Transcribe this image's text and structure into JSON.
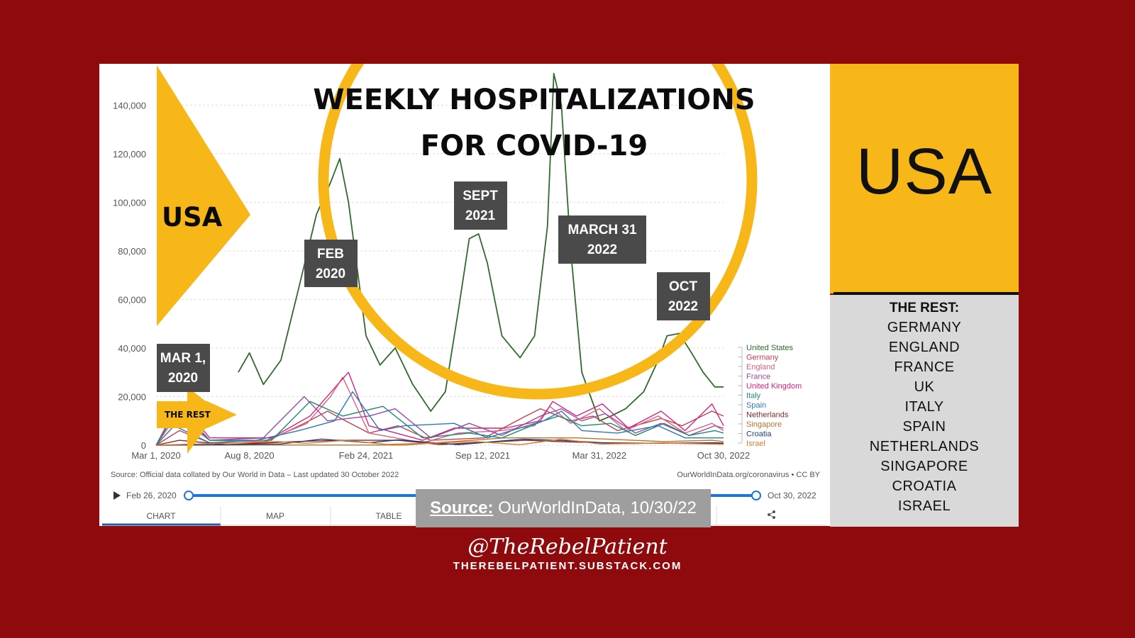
{
  "chart_data": {
    "type": "line",
    "title_line1": "WEEKLY HOSPITALIZATIONS",
    "title_line2": "FOR COVID-19",
    "x_ticks": [
      "Mar 1, 2020",
      "Aug 8, 2020",
      "Feb 24, 2021",
      "Sep 12, 2021",
      "Mar 31, 2022",
      "Oct 30, 2022"
    ],
    "y_ticks": [
      "0",
      "20,000",
      "40,000",
      "60,000",
      "80,000",
      "100,000",
      "120,000",
      "140,000"
    ],
    "ylim": [
      0,
      150000
    ],
    "xlim": [
      "2020-03-01",
      "2022-10-30"
    ],
    "grid": true,
    "legend_position": "right",
    "series": [
      {
        "name": "United States",
        "color": "#2f6b2a",
        "x": [
          "2020-07-20",
          "2020-08-08",
          "2020-09-01",
          "2020-10-01",
          "2020-11-01",
          "2020-12-01",
          "2020-12-25",
          "2021-01-10",
          "2021-01-25",
          "2021-02-24",
          "2021-03-20",
          "2021-04-15",
          "2021-05-15",
          "2021-06-15",
          "2021-07-10",
          "2021-08-01",
          "2021-08-20",
          "2021-09-05",
          "2021-09-20",
          "2021-10-15",
          "2021-11-15",
          "2021-12-10",
          "2022-01-01",
          "2022-01-12",
          "2022-01-25",
          "2022-02-10",
          "2022-03-01",
          "2022-03-31",
          "2022-04-20",
          "2022-05-15",
          "2022-06-15",
          "2022-07-10",
          "2022-07-25",
          "2022-08-15",
          "2022-09-05",
          "2022-09-25",
          "2022-10-15",
          "2022-10-30"
        ],
        "y": [
          30000,
          38000,
          25000,
          35000,
          65000,
          95000,
          108000,
          118000,
          100000,
          45000,
          33000,
          40000,
          25000,
          14000,
          22000,
          55000,
          85000,
          87000,
          75000,
          45000,
          36000,
          45000,
          90000,
          153000,
          140000,
          80000,
          30000,
          10000,
          12000,
          15000,
          22000,
          35000,
          45000,
          46000,
          38000,
          30000,
          24000,
          24000
        ]
      },
      {
        "name": "Germany",
        "color": "#c2414e",
        "x": [
          "2020-03-01",
          "2020-04-10",
          "2020-06-01",
          "2020-09-01",
          "2020-11-10",
          "2020-12-20",
          "2021-01-20",
          "2021-03-01",
          "2021-04-20",
          "2021-06-15",
          "2021-09-15",
          "2021-11-25",
          "2021-12-20",
          "2022-02-10",
          "2022-03-20",
          "2022-05-01",
          "2022-07-15",
          "2022-08-20",
          "2022-10-10",
          "2022-10-30"
        ],
        "y": [
          0,
          6000,
          1000,
          1000,
          9000,
          14000,
          10000,
          5000,
          8000,
          2000,
          3000,
          12000,
          15000,
          10000,
          12000,
          6000,
          11000,
          8000,
          14000,
          12000
        ]
      },
      {
        "name": "England",
        "color": "#e0607e",
        "x": [
          "2020-03-01",
          "2020-04-05",
          "2020-06-01",
          "2020-09-01",
          "2020-11-15",
          "2020-12-25",
          "2021-01-15",
          "2021-03-01",
          "2021-06-01",
          "2021-08-01",
          "2021-10-15",
          "2021-12-10",
          "2022-01-05",
          "2022-02-10",
          "2022-03-31",
          "2022-05-15",
          "2022-07-10",
          "2022-08-25",
          "2022-10-10",
          "2022-10-30"
        ],
        "y": [
          0,
          12000,
          2000,
          1500,
          9000,
          20000,
          28000,
          5000,
          1000,
          5000,
          6000,
          8000,
          16000,
          9000,
          15000,
          6000,
          12000,
          5000,
          9000,
          6000
        ]
      },
      {
        "name": "France",
        "color": "#9a4aa8",
        "x": [
          "2020-03-01",
          "2020-04-10",
          "2020-06-01",
          "2020-09-01",
          "2020-11-10",
          "2020-12-20",
          "2021-03-01",
          "2021-04-15",
          "2021-06-15",
          "2021-08-20",
          "2021-10-15",
          "2021-12-20",
          "2022-01-25",
          "2022-03-01",
          "2022-04-10",
          "2022-06-01",
          "2022-07-15",
          "2022-09-01",
          "2022-10-15",
          "2022-10-30"
        ],
        "y": [
          0,
          16000,
          2000,
          3000,
          20000,
          10000,
          12000,
          15000,
          3000,
          9000,
          4000,
          12000,
          15000,
          10000,
          13000,
          5000,
          9000,
          4000,
          8000,
          7000
        ]
      },
      {
        "name": "United Kingdom",
        "color": "#d6247e",
        "x": [
          "2020-03-01",
          "2020-04-10",
          "2020-06-01",
          "2020-09-15",
          "2020-11-20",
          "2021-01-10",
          "2021-01-25",
          "2021-03-01",
          "2021-06-01",
          "2021-07-25",
          "2021-10-20",
          "2021-12-20",
          "2022-01-10",
          "2022-02-20",
          "2022-04-05",
          "2022-05-20",
          "2022-07-15",
          "2022-08-25",
          "2022-10-10",
          "2022-10-30"
        ],
        "y": [
          0,
          18000,
          3000,
          3000,
          12000,
          26000,
          30000,
          8000,
          2000,
          7000,
          7000,
          10000,
          18000,
          12000,
          17000,
          7000,
          14000,
          6000,
          17000,
          8000
        ]
      },
      {
        "name": "Italy",
        "color": "#1f8a70",
        "x": [
          "2020-03-01",
          "2020-04-05",
          "2020-06-01",
          "2020-09-15",
          "2020-11-20",
          "2021-01-15",
          "2021-03-25",
          "2021-06-01",
          "2021-08-20",
          "2021-10-15",
          "2021-12-25",
          "2022-01-20",
          "2022-03-01",
          "2022-04-20",
          "2022-06-01",
          "2022-07-20",
          "2022-09-01",
          "2022-10-15",
          "2022-10-30"
        ],
        "y": [
          0,
          14000,
          2000,
          2000,
          18000,
          12000,
          16000,
          3000,
          5000,
          3000,
          10000,
          12000,
          8000,
          9000,
          4000,
          9000,
          4000,
          6000,
          5000
        ]
      },
      {
        "name": "Spain",
        "color": "#2a7ab8",
        "x": [
          "2020-03-01",
          "2020-04-01",
          "2020-06-01",
          "2020-08-20",
          "2020-11-01",
          "2021-01-01",
          "2021-02-01",
          "2021-03-20",
          "2021-05-01",
          "2021-07-25",
          "2021-09-20",
          "2021-12-25",
          "2022-01-25",
          "2022-03-01",
          "2022-05-01",
          "2022-07-10",
          "2022-08-25",
          "2022-10-30"
        ],
        "y": [
          0,
          8000,
          1000,
          2000,
          6000,
          10000,
          22000,
          6000,
          8000,
          9000,
          3000,
          10000,
          14000,
          6000,
          5000,
          8000,
          3000,
          3000
        ]
      },
      {
        "name": "Netherlands",
        "color": "#7a2b2b",
        "x": [
          "2020-03-01",
          "2020-04-10",
          "2020-07-01",
          "2020-10-25",
          "2021-01-10",
          "2021-04-20",
          "2021-07-01",
          "2021-11-25",
          "2022-01-20",
          "2022-04-01",
          "2022-07-10",
          "2022-10-15",
          "2022-10-30"
        ],
        "y": [
          0,
          2000,
          200,
          1500,
          2000,
          2000,
          300,
          2000,
          1500,
          1000,
          800,
          1000,
          900
        ]
      },
      {
        "name": "Singapore",
        "color": "#b8742a",
        "x": [
          "2020-03-01",
          "2020-08-01",
          "2021-05-01",
          "2021-10-20",
          "2022-02-20",
          "2022-07-20",
          "2022-10-10",
          "2022-10-30"
        ],
        "y": [
          0,
          50,
          50,
          3000,
          3000,
          1500,
          2000,
          1500
        ]
      },
      {
        "name": "Croatia",
        "color": "#1f3e78",
        "x": [
          "2020-03-01",
          "2020-10-01",
          "2020-12-10",
          "2021-03-01",
          "2021-04-20",
          "2021-08-01",
          "2021-11-20",
          "2022-02-10",
          "2022-05-01",
          "2022-07-20",
          "2022-10-30"
        ],
        "y": [
          0,
          500,
          2500,
          1000,
          2200,
          200,
          2500,
          1800,
          600,
          900,
          600
        ]
      },
      {
        "name": "Israel",
        "color": "#e07a2a",
        "x": [
          "2020-03-01",
          "2020-09-25",
          "2020-11-15",
          "2021-01-20",
          "2021-04-01",
          "2021-09-01",
          "2021-11-15",
          "2022-01-25",
          "2022-04-01",
          "2022-07-10",
          "2022-10-30"
        ],
        "y": [
          0,
          1500,
          800,
          2000,
          300,
          1500,
          200,
          2500,
          500,
          900,
          400
        ]
      }
    ]
  },
  "annotations": {
    "feb_2020": [
      "FEB",
      "2020"
    ],
    "sept_2021": [
      "SEPT",
      "2021"
    ],
    "march_31_2022": [
      "MARCH 31",
      "2022"
    ],
    "oct_2022": [
      "OCT",
      "2022"
    ],
    "mar_1_2020": [
      "MAR 1,",
      "2020"
    ]
  },
  "overlay": {
    "usa_label": "USA",
    "rest_label": "THE REST"
  },
  "chart_source": "Source: Official data collated by Our World in Data – Last updated 30 October 2022",
  "chart_credit": "OurWorldInData.org/coronavirus • CC BY",
  "timeline": {
    "start": "Feb 26, 2020",
    "end": "Oct 30, 2022"
  },
  "tabs": [
    "CHART",
    "MAP",
    "TABLE"
  ],
  "source_overlay": {
    "label": "Source:",
    "value": " OurWorldInData, 10/30/22"
  },
  "side_panel": {
    "title": "USA",
    "rest_heading": "THE REST:",
    "rest_list": [
      "GERMANY",
      "ENGLAND",
      "FRANCE",
      "UK",
      "ITALY",
      "SPAIN",
      "NETHERLANDS",
      "SINGAPORE",
      "CROATIA",
      "ISRAEL"
    ]
  },
  "footer": {
    "handle": "@TheRebelPatient",
    "site": "THEREBELPATIENT.SUBSTACK.COM"
  },
  "colors": {
    "background": "#8e0a0c",
    "accent_yellow": "#f8b718",
    "annotation_box": "#4a4a4a",
    "slider_blue": "#1a73e8"
  }
}
